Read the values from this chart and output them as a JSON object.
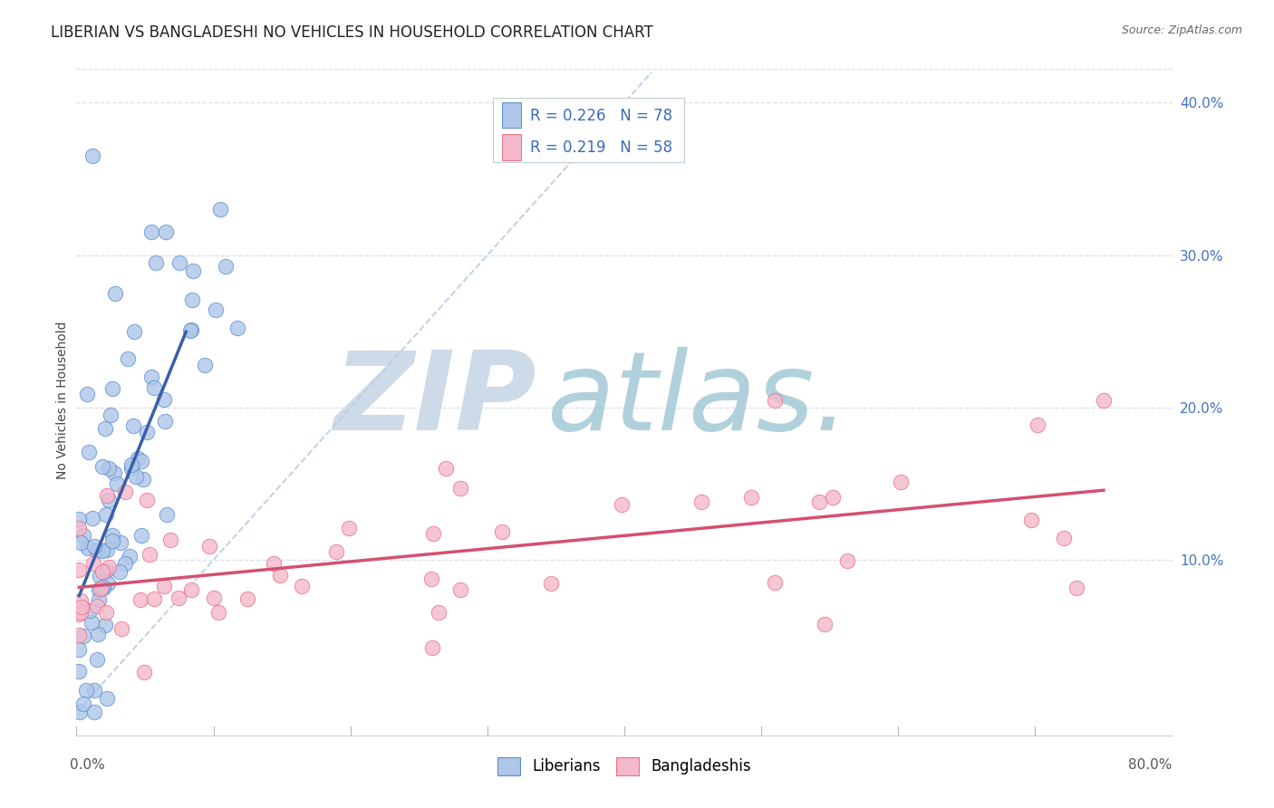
{
  "title": "LIBERIAN VS BANGLADESHI NO VEHICLES IN HOUSEHOLD CORRELATION CHART",
  "source": "Source: ZipAtlas.com",
  "ylabel": "No Vehicles in Household",
  "xmin": 0.0,
  "xmax": 0.8,
  "ymin": -0.015,
  "ymax": 0.425,
  "liberian_R": 0.226,
  "liberian_N": 78,
  "bangladeshi_R": 0.219,
  "bangladeshi_N": 58,
  "liberian_color": "#aec6e8",
  "bangladeshi_color": "#f4b8cb",
  "liberian_edge_color": "#5b8fd4",
  "bangladeshi_edge_color": "#e8708a",
  "liberian_line_color": "#3a5fa8",
  "bangladeshi_line_color": "#d45070",
  "diagonal_color": "#b8cce4",
  "watermark_zip_color": "#cddae8",
  "watermark_atlas_color": "#a8ccd8",
  "title_fontsize": 12,
  "label_fontsize": 10,
  "tick_fontsize": 11,
  "grid_color": "#d8dfe8",
  "spine_color": "#c8d0da"
}
